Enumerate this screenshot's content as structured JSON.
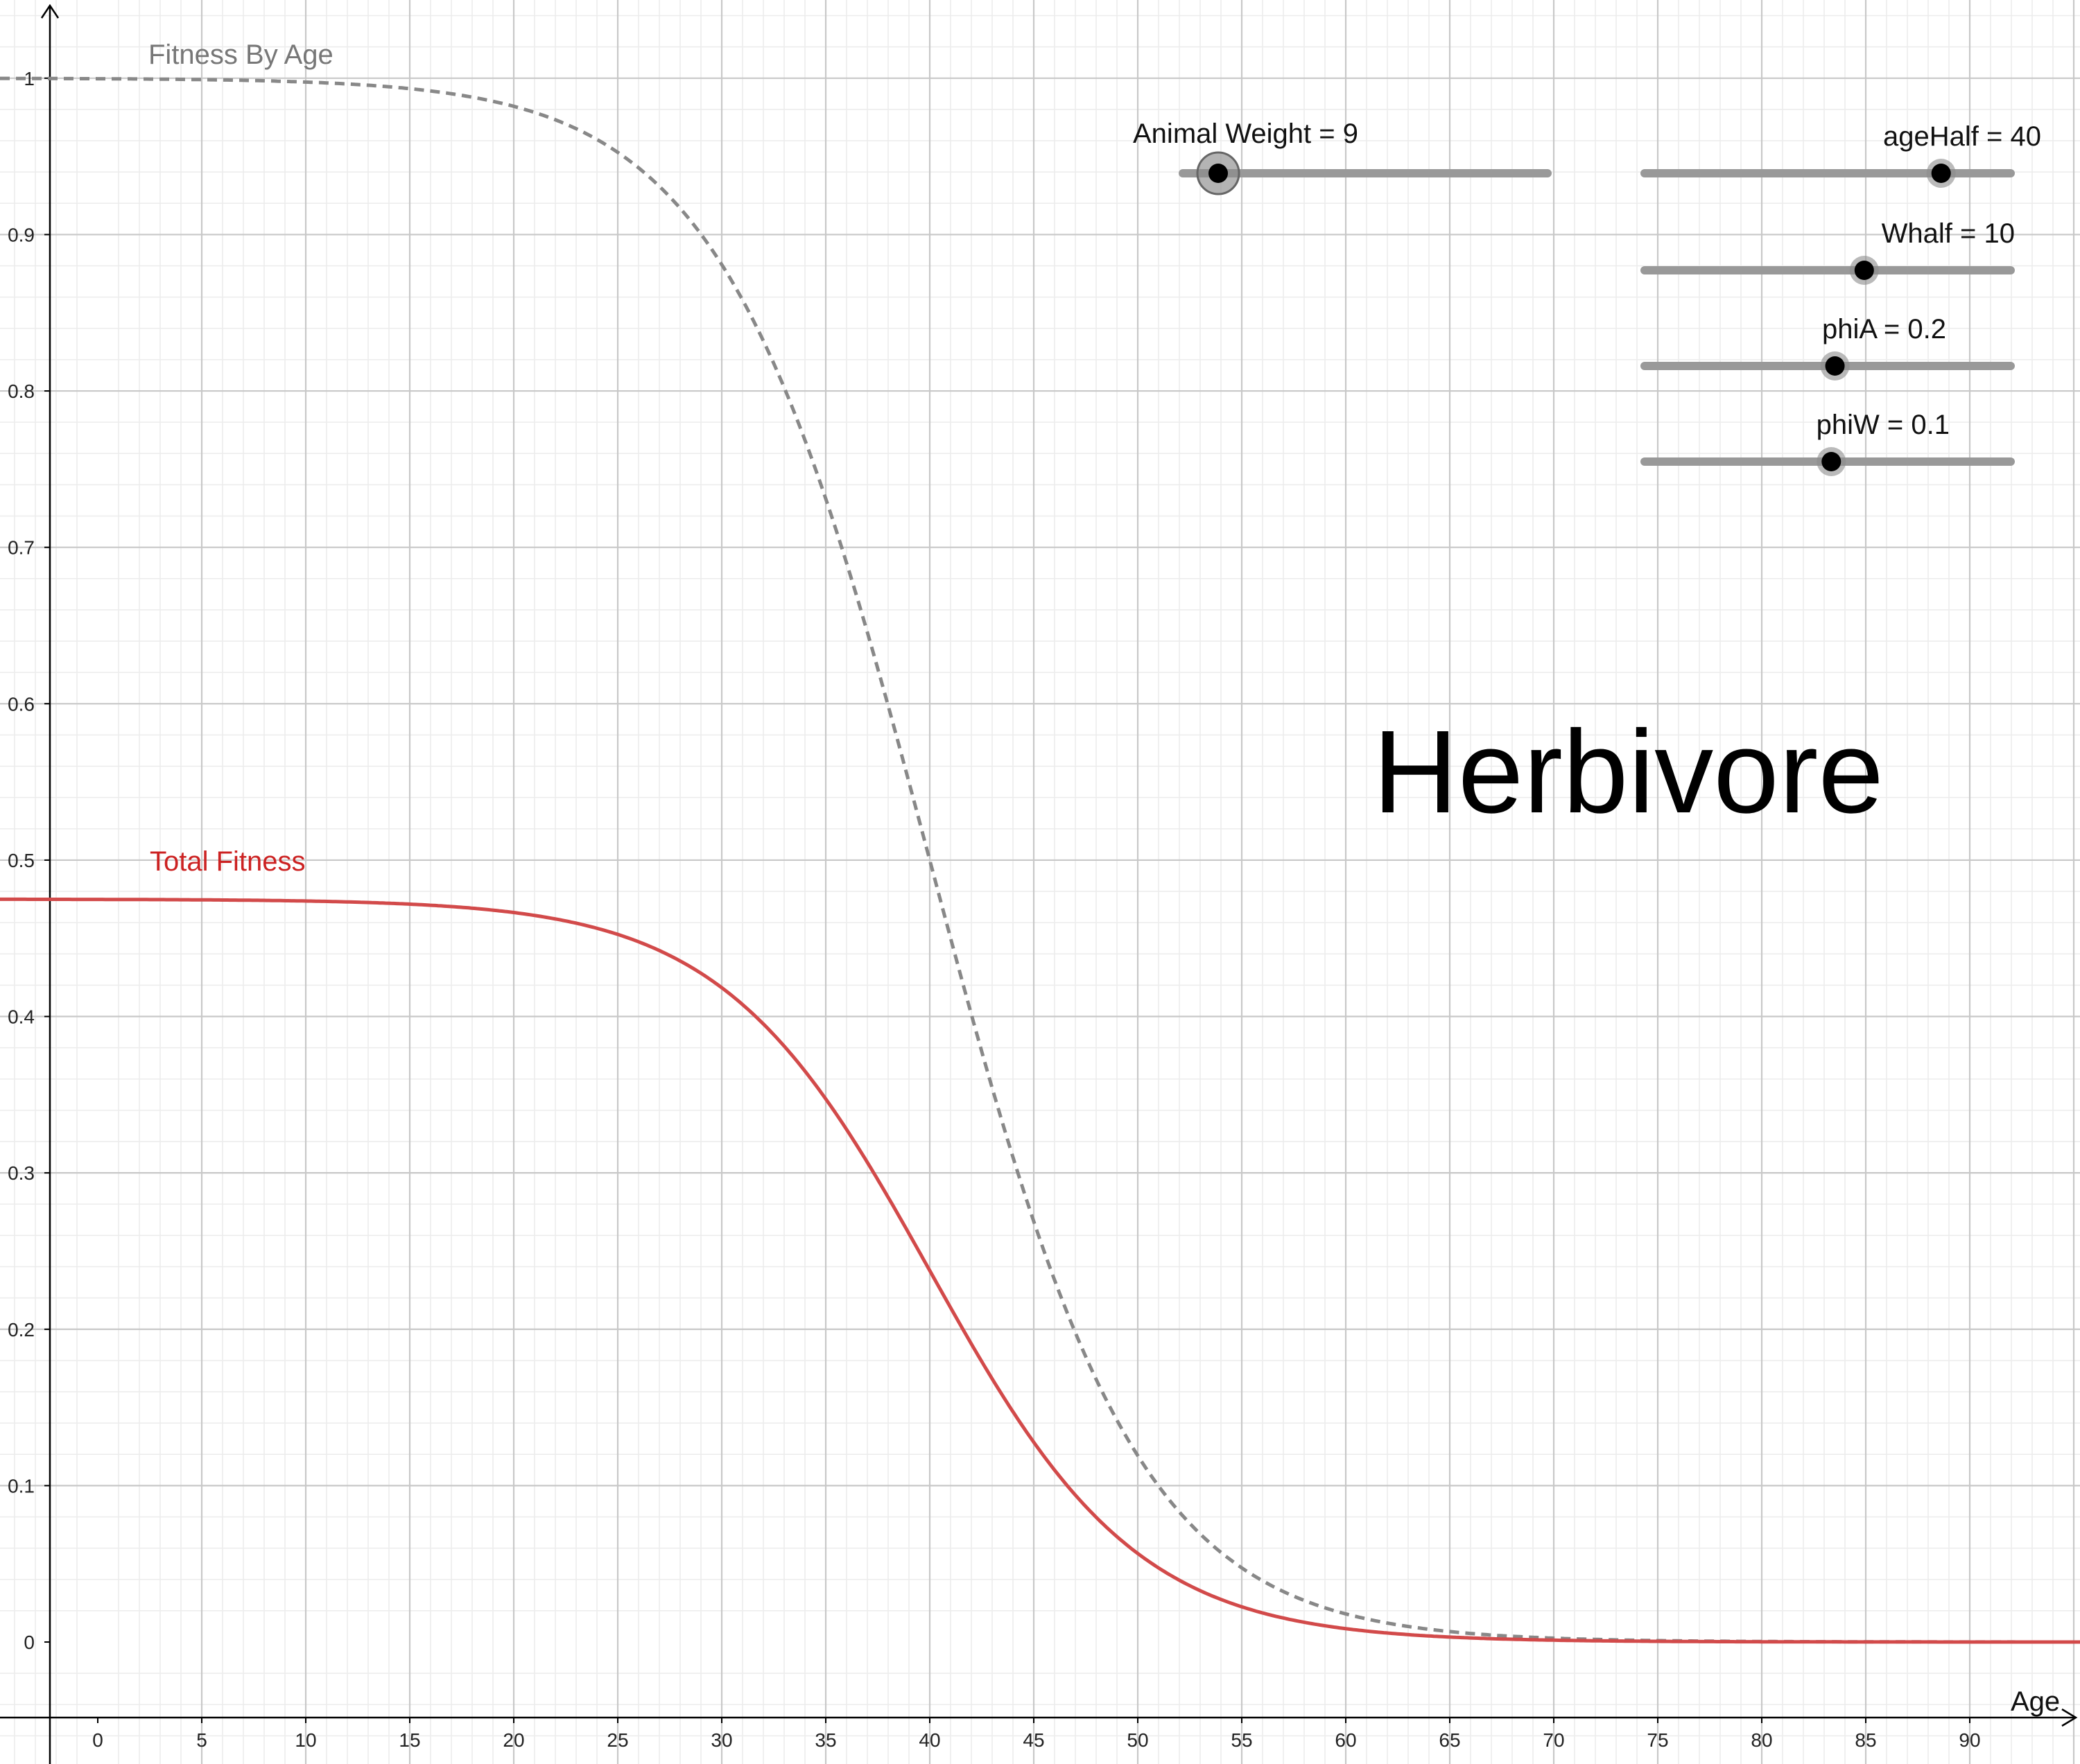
{
  "view": {
    "xmin": -4.7,
    "xmax": 95.3,
    "ymin": -0.078,
    "ymax": 1.05
  },
  "axes": {
    "x_label": "Age",
    "y_label": "",
    "x_ticks": [
      0,
      5,
      10,
      15,
      20,
      25,
      30,
      35,
      40,
      45,
      50,
      55,
      60,
      65,
      70,
      75,
      80,
      85,
      90
    ],
    "y_ticks": [
      0,
      0.1,
      0.2,
      0.3,
      0.4,
      0.5,
      0.6,
      0.7,
      0.8,
      0.9,
      1
    ],
    "x_tick_labels": [
      "0",
      "5",
      "10",
      "15",
      "20",
      "25",
      "30",
      "35",
      "40",
      "45",
      "50",
      "55",
      "60",
      "65",
      "70",
      "75",
      "80",
      "85",
      "90"
    ],
    "y_tick_labels": [
      "0",
      "0.1",
      "0.2",
      "0.3",
      "0.4",
      "0.5",
      "0.6",
      "0.7",
      "0.8",
      "0.9",
      "1"
    ]
  },
  "title": "Herbivore",
  "parameters": {
    "animal_weight": 9,
    "age_half": 40,
    "w_half": 10,
    "phi_a": 0.2,
    "phi_w": 0.1
  },
  "sliders": [
    {
      "id": "animal-weight",
      "label": "Animal Weight = 9",
      "value": 9,
      "min": 0,
      "max": 50,
      "fraction": 0.097
    },
    {
      "id": "age-half",
      "label": "ageHalf = 40",
      "value": 40,
      "min": 0,
      "max": 45,
      "fraction": 0.81
    },
    {
      "id": "w-half",
      "label": "Whalf = 10",
      "value": 10,
      "min": 0,
      "max": 16,
      "fraction": 0.6
    },
    {
      "id": "phi-a",
      "label": "phiA = 0.2",
      "value": 0.2,
      "min": 0,
      "max": 0.4,
      "fraction": 0.52
    },
    {
      "id": "phi-w",
      "label": "phiW = 0.1",
      "value": 0.1,
      "min": 0,
      "max": 0.2,
      "fraction": 0.51
    }
  ],
  "chart_data": {
    "type": "line",
    "xlabel": "Age",
    "ylabel": "",
    "xlim": [
      -4.7,
      95.3
    ],
    "ylim": [
      -0.078,
      1.05
    ],
    "grid": true,
    "series": [
      {
        "name": "Fitness By Age",
        "style": "dashed",
        "color": "#888888",
        "x": [
          0,
          5,
          10,
          15,
          20,
          25,
          30,
          32,
          34,
          36,
          38,
          40,
          42,
          44,
          46,
          48,
          50,
          55,
          60,
          65,
          70,
          80,
          90,
          95
        ],
        "y": [
          1.0,
          1.0,
          0.998,
          0.993,
          0.982,
          0.953,
          0.881,
          0.832,
          0.769,
          0.69,
          0.599,
          0.5,
          0.401,
          0.31,
          0.231,
          0.168,
          0.119,
          0.047,
          0.018,
          0.007,
          0.002,
          0.0003,
          0.0,
          0.0
        ]
      },
      {
        "name": "Total Fitness",
        "style": "solid",
        "color": "#d24a4a",
        "x": [
          0,
          5,
          10,
          15,
          20,
          25,
          30,
          32,
          34,
          36,
          38,
          40,
          42,
          44,
          46,
          48,
          50,
          55,
          60,
          65,
          70,
          80,
          90,
          95
        ],
        "y": [
          0.475,
          0.475,
          0.474,
          0.472,
          0.467,
          0.453,
          0.419,
          0.395,
          0.365,
          0.328,
          0.285,
          0.238,
          0.19,
          0.147,
          0.11,
          0.08,
          0.057,
          0.022,
          0.009,
          0.003,
          0.001,
          0.0001,
          0.0,
          0.0
        ]
      }
    ]
  },
  "colors": {
    "grid_major": "#c8c8c8",
    "grid_minor": "#ececec",
    "axis": "#000000",
    "slider_track": "#999999",
    "slider_knob": "#000000",
    "slider_halo": "#8c8c8c",
    "fitness_by_age": "#888888",
    "total_fitness": "#d24a4a"
  },
  "icons": {
    "slider_knob": "circle-knob-icon"
  }
}
